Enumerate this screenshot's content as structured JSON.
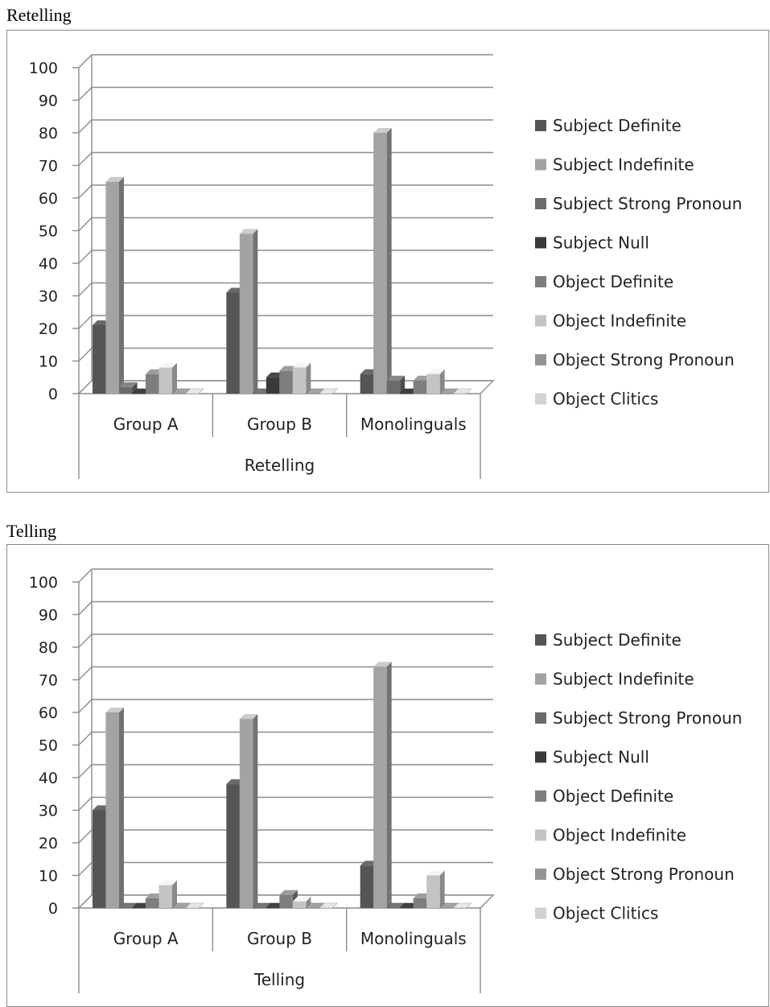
{
  "chart_data": [
    {
      "type": "bar",
      "caption": "Retelling",
      "xlabel": "Retelling",
      "categories": [
        "Group A",
        "Group B",
        "Monolinguals"
      ],
      "ylim": [
        0,
        100
      ],
      "yticks": [
        0,
        10,
        20,
        30,
        40,
        50,
        60,
        70,
        80,
        90,
        100
      ],
      "grid": true,
      "legend": "right",
      "series": [
        {
          "name": "Subject Definite",
          "color": "#555555",
          "values": [
            21,
            31,
            6
          ]
        },
        {
          "name": "Subject Indefinite",
          "color": "#a3a3a3",
          "values": [
            65,
            49,
            80
          ]
        },
        {
          "name": "Subject Strong Pronoun",
          "color": "#6b6b6b",
          "values": [
            2,
            0,
            4
          ]
        },
        {
          "name": "Subject Null",
          "color": "#3a3a3a",
          "values": [
            0,
            5,
            0
          ]
        },
        {
          "name": "Object Definite",
          "color": "#7e7e7e",
          "values": [
            6,
            7,
            4
          ]
        },
        {
          "name": "Object Indefinite",
          "color": "#c4c4c4",
          "values": [
            8,
            8,
            6
          ]
        },
        {
          "name": "Object Strong Pronoun",
          "color": "#949494",
          "values": [
            0,
            0,
            0
          ]
        },
        {
          "name": "Object Clitics",
          "color": "#d2d2d2",
          "values": [
            0,
            0,
            0
          ]
        }
      ]
    },
    {
      "type": "bar",
      "caption": "Telling",
      "xlabel": "Telling",
      "categories": [
        "Group A",
        "Group B",
        "Monolinguals"
      ],
      "ylim": [
        0,
        100
      ],
      "yticks": [
        0,
        10,
        20,
        30,
        40,
        50,
        60,
        70,
        80,
        90,
        100
      ],
      "grid": true,
      "legend": "right",
      "series": [
        {
          "name": "Subject Definite",
          "color": "#555555",
          "values": [
            30,
            38,
            13
          ]
        },
        {
          "name": "Subject Indefinite",
          "color": "#a3a3a3",
          "values": [
            60,
            58,
            74
          ]
        },
        {
          "name": "Subject Strong Pronoun",
          "color": "#6b6b6b",
          "values": [
            0,
            0,
            0
          ]
        },
        {
          "name": "Subject Null",
          "color": "#3a3a3a",
          "values": [
            0,
            0,
            0
          ]
        },
        {
          "name": "Object Definite",
          "color": "#7e7e7e",
          "values": [
            3,
            4,
            3
          ]
        },
        {
          "name": "Object Indefinite",
          "color": "#c4c4c4",
          "values": [
            7,
            2,
            10
          ]
        },
        {
          "name": "Object Strong Pronoun",
          "color": "#949494",
          "values": [
            0,
            0,
            0
          ]
        },
        {
          "name": "Object Clitics",
          "color": "#d2d2d2",
          "values": [
            0,
            0,
            0
          ]
        }
      ]
    }
  ]
}
